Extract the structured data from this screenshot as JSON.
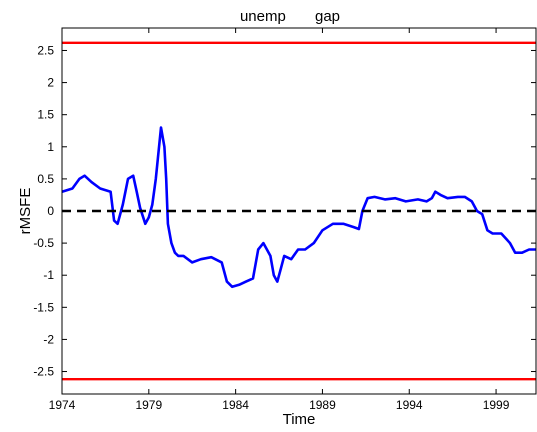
{
  "chart_data": {
    "type": "line",
    "title": "unemp       gap",
    "xlabel": "Time",
    "ylabel": "rMSFE",
    "xlim": [
      1974,
      2001.3
    ],
    "ylim": [
      -2.85,
      2.85
    ],
    "xticks": [
      1974,
      1979,
      1984,
      1989,
      1994,
      1999
    ],
    "yticks": [
      2.5,
      2,
      1.5,
      1,
      0.5,
      0,
      -0.5,
      -1,
      -1.5,
      -2,
      -2.5
    ],
    "ytick_labels": [
      "2.5",
      "2",
      "1.5",
      "1",
      "0.5",
      "0",
      "-0.5",
      "-1",
      "-1.5",
      "-2",
      "-2.5"
    ],
    "grid": false,
    "series": [
      {
        "color": "#0000ff",
        "style": "solid",
        "x": [
          1974.0,
          1974.6,
          1975.0,
          1975.3,
          1975.7,
          1976.2,
          1976.8,
          1977.0,
          1977.2,
          1977.5,
          1977.8,
          1978.1,
          1978.3,
          1978.5,
          1978.8,
          1979.0,
          1979.2,
          1979.4,
          1979.7,
          1979.9,
          1980.0,
          1980.1,
          1980.3,
          1980.5,
          1980.7,
          1981.0,
          1981.5,
          1982.0,
          1982.6,
          1983.2,
          1983.5,
          1983.8,
          1984.2,
          1984.6,
          1985.0,
          1985.3,
          1985.6,
          1986.0,
          1986.2,
          1986.4,
          1986.6,
          1986.8,
          1987.2,
          1987.6,
          1988.0,
          1988.5,
          1989.0,
          1989.6,
          1990.2,
          1990.8,
          1991.1,
          1991.3,
          1991.6,
          1992.0,
          1992.6,
          1993.2,
          1993.8,
          1994.5,
          1995.0,
          1995.3,
          1995.5,
          1995.8,
          1996.2,
          1996.8,
          1997.2,
          1997.6,
          1997.9,
          1998.2,
          1998.5,
          1998.8,
          1999.3,
          1999.8,
          2000.1,
          2000.5,
          2000.9,
          2001.3
        ],
        "values": [
          0.3,
          0.35,
          0.5,
          0.55,
          0.45,
          0.35,
          0.3,
          -0.15,
          -0.2,
          0.1,
          0.5,
          0.55,
          0.3,
          0.05,
          -0.2,
          -0.1,
          0.1,
          0.5,
          1.3,
          1.0,
          0.5,
          -0.2,
          -0.5,
          -0.65,
          -0.7,
          -0.7,
          -0.8,
          -0.75,
          -0.72,
          -0.8,
          -1.1,
          -1.18,
          -1.15,
          -1.1,
          -1.05,
          -0.6,
          -0.5,
          -0.7,
          -1.0,
          -1.1,
          -0.9,
          -0.7,
          -0.75,
          -0.6,
          -0.6,
          -0.5,
          -0.3,
          -0.2,
          -0.2,
          -0.25,
          -0.28,
          0.0,
          0.2,
          0.22,
          0.18,
          0.2,
          0.15,
          0.18,
          0.15,
          0.2,
          0.3,
          0.25,
          0.2,
          0.22,
          0.22,
          0.15,
          0.0,
          -0.05,
          -0.3,
          -0.35,
          -0.35,
          -0.5,
          -0.65,
          -0.65,
          -0.6,
          -0.6
        ]
      },
      {
        "color": "#000000",
        "style": "dashed",
        "x": [
          1974,
          2001.3
        ],
        "values": [
          0,
          0
        ]
      },
      {
        "color": "#ff0000",
        "style": "solid",
        "x": [
          1974,
          2001.3
        ],
        "values": [
          2.62,
          2.62
        ]
      },
      {
        "color": "#ff0000",
        "style": "solid",
        "x": [
          1974,
          2001.3
        ],
        "values": [
          -2.62,
          -2.62
        ]
      }
    ]
  }
}
